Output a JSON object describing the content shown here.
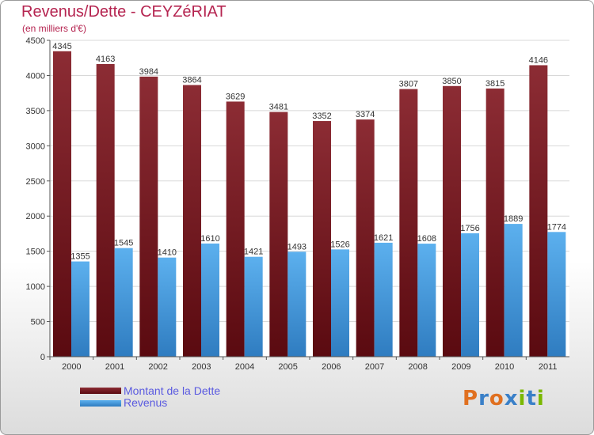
{
  "header": {
    "title": "Revenus/Dette - CEYZéRIAT",
    "subtitle": "(en milliers d'€)"
  },
  "logo": {
    "letters": [
      "P",
      "r",
      "o",
      "x",
      "i",
      "t",
      "i"
    ],
    "colors": [
      "#e07020",
      "#3a80c8",
      "#e07020",
      "#3a80c8",
      "#7ab800",
      "#3a80c8",
      "#7ab800"
    ]
  },
  "chart_data": {
    "type": "bar",
    "title": "Revenus/Dette - CEYZéRIAT",
    "ylabel": "(en milliers d'€)",
    "categories": [
      "2000",
      "2001",
      "2002",
      "2003",
      "2004",
      "2005",
      "2006",
      "2007",
      "2008",
      "2009",
      "2010",
      "2011"
    ],
    "ylim": [
      0,
      4500
    ],
    "yticks": [
      0,
      500,
      1000,
      1500,
      2000,
      2500,
      3000,
      3500,
      4000,
      4500
    ],
    "grid": true,
    "legend_position": "bottom-left",
    "series": [
      {
        "name": "Montant de la Dette",
        "color": "#7b1f28",
        "values": [
          4345,
          4163,
          3984,
          3864,
          3629,
          3481,
          3352,
          3374,
          3807,
          3850,
          3815,
          4146
        ]
      },
      {
        "name": "Revenus",
        "color": "#4aa3e8",
        "values": [
          1355,
          1545,
          1410,
          1610,
          1421,
          1493,
          1526,
          1621,
          1608,
          1756,
          1889,
          1774
        ]
      }
    ]
  }
}
